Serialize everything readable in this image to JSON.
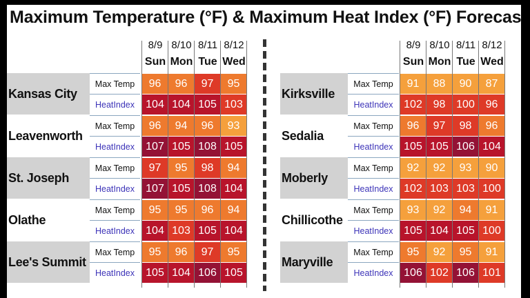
{
  "chart_data": {
    "type": "table",
    "title": "Maximum Temperature (°F) & Maximum Heat Index (°F) Forecast",
    "columns": [
      {
        "date": "8/9",
        "day": "Sun"
      },
      {
        "date": "8/10",
        "day": "Mon"
      },
      {
        "date": "8/11",
        "day": "Tue"
      },
      {
        "date": "8/12",
        "day": "Wed"
      }
    ],
    "row_labels": {
      "max_temp": "Max Temp",
      "heat_index": "HeatIndex"
    },
    "colors": {
      "orange": "#f5a03c",
      "dark_orange": "#ee7a2e",
      "red": "#de3a27",
      "dark_red": "#b8142b",
      "maroon": "#941235"
    },
    "panels": [
      {
        "cities": [
          {
            "name": "Kansas City",
            "max_temp": [
              96,
              96,
              97,
              95
            ],
            "heat_index": [
              104,
              104,
              105,
              103
            ]
          },
          {
            "name": "Leavenworth",
            "max_temp": [
              96,
              94,
              96,
              93
            ],
            "heat_index": [
              107,
              105,
              108,
              105
            ]
          },
          {
            "name": "St. Joseph",
            "max_temp": [
              97,
              95,
              98,
              94
            ],
            "heat_index": [
              107,
              105,
              108,
              104
            ]
          },
          {
            "name": "Olathe",
            "max_temp": [
              95,
              95,
              96,
              94
            ],
            "heat_index": [
              104,
              103,
              105,
              104
            ]
          },
          {
            "name": "Lee's Summit",
            "max_temp": [
              95,
              96,
              97,
              95
            ],
            "heat_index": [
              105,
              104,
              106,
              105
            ]
          }
        ]
      },
      {
        "cities": [
          {
            "name": "Kirksville",
            "max_temp": [
              91,
              88,
              90,
              87
            ],
            "heat_index": [
              102,
              98,
              100,
              96
            ]
          },
          {
            "name": "Sedalia",
            "max_temp": [
              96,
              97,
              98,
              96
            ],
            "heat_index": [
              105,
              105,
              106,
              104
            ]
          },
          {
            "name": "Moberly",
            "max_temp": [
              92,
              92,
              93,
              90
            ],
            "heat_index": [
              102,
              103,
              103,
              100
            ]
          },
          {
            "name": "Chillicothe",
            "max_temp": [
              93,
              92,
              94,
              91
            ],
            "heat_index": [
              105,
              104,
              105,
              100
            ]
          },
          {
            "name": "Maryville",
            "max_temp": [
              95,
              92,
              95,
              91
            ],
            "heat_index": [
              106,
              102,
              106,
              101
            ]
          }
        ]
      }
    ]
  }
}
